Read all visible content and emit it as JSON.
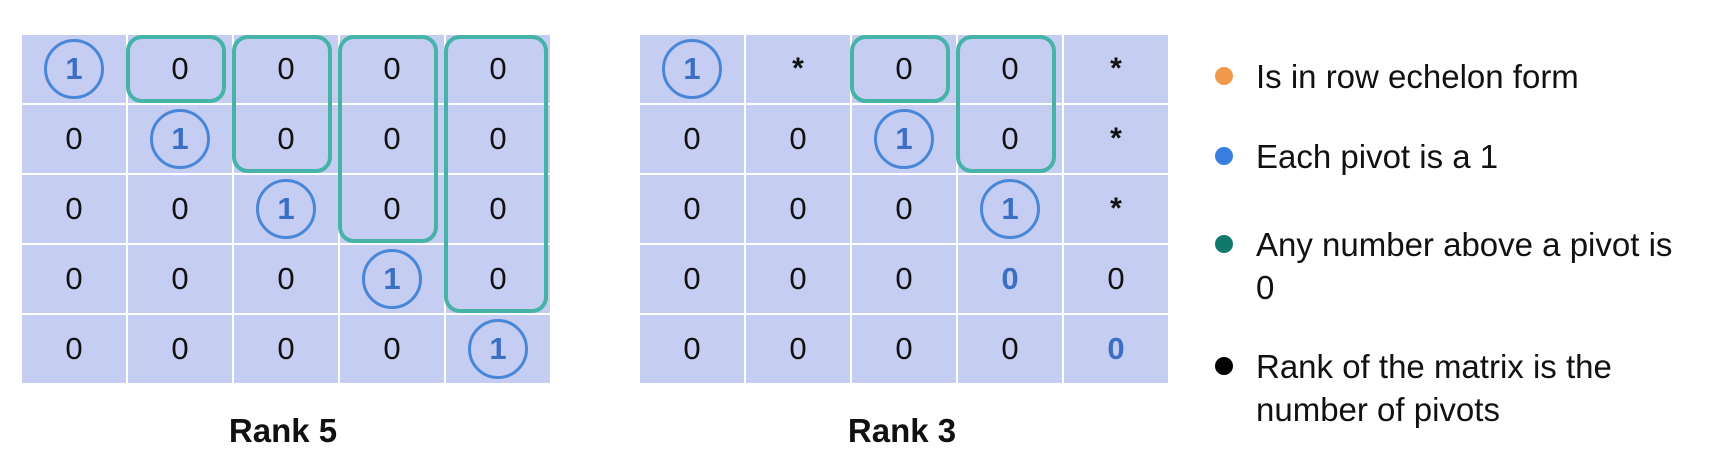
{
  "matrices": [
    {
      "caption": "Rank 5",
      "rows": [
        [
          "1",
          "0",
          "0",
          "0",
          "0"
        ],
        [
          "0",
          "1",
          "0",
          "0",
          "0"
        ],
        [
          "0",
          "0",
          "1",
          "0",
          "0"
        ],
        [
          "0",
          "0",
          "0",
          "1",
          "0"
        ],
        [
          "0",
          "0",
          "0",
          "0",
          "1"
        ]
      ]
    },
    {
      "caption": "Rank 3",
      "rows": [
        [
          "1",
          "*",
          "0",
          "0",
          "*"
        ],
        [
          "0",
          "0",
          "1",
          "0",
          "*"
        ],
        [
          "0",
          "0",
          "0",
          "1",
          "*"
        ],
        [
          "0",
          "0",
          "0",
          "0",
          "0"
        ],
        [
          "0",
          "0",
          "0",
          "0",
          "0"
        ]
      ]
    }
  ],
  "legend": [
    {
      "text": "Is in row echelon form",
      "color": "#f39a4a"
    },
    {
      "text": "Each pivot is a 1",
      "color": "#3a7de0"
    },
    {
      "text": "Any number above a pivot is 0",
      "color": "#0f7a6c"
    },
    {
      "text": "Rank of the matrix is the number of pivots",
      "color": "#000000"
    }
  ],
  "colors": {
    "cell_background": "#c5cdf3",
    "pivot_circle": "#4a86d8",
    "bracket": "#45b3a7",
    "highlight_text": "#3a6fc4"
  }
}
